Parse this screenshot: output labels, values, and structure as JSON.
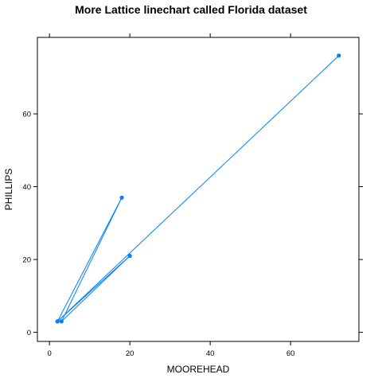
{
  "chart_data": {
    "type": "line",
    "title": "More Lattice linechart called Florida dataset",
    "xlabel": "MOOREHEAD",
    "ylabel": "PHILLIPS",
    "xlim": [
      -3,
      77
    ],
    "ylim": [
      -2.5,
      81
    ],
    "xticks": [
      0,
      20,
      40,
      60
    ],
    "yticks": [
      0,
      20,
      40,
      60
    ],
    "grid": false,
    "series": [
      {
        "color": "#0080ff",
        "points": [
          {
            "x": 2,
            "y": 3
          },
          {
            "x": 18,
            "y": 37
          },
          {
            "x": 3,
            "y": 3
          },
          {
            "x": 20,
            "y": 21
          },
          {
            "x": 2,
            "y": 3
          },
          {
            "x": 72,
            "y": 76
          }
        ]
      }
    ]
  }
}
